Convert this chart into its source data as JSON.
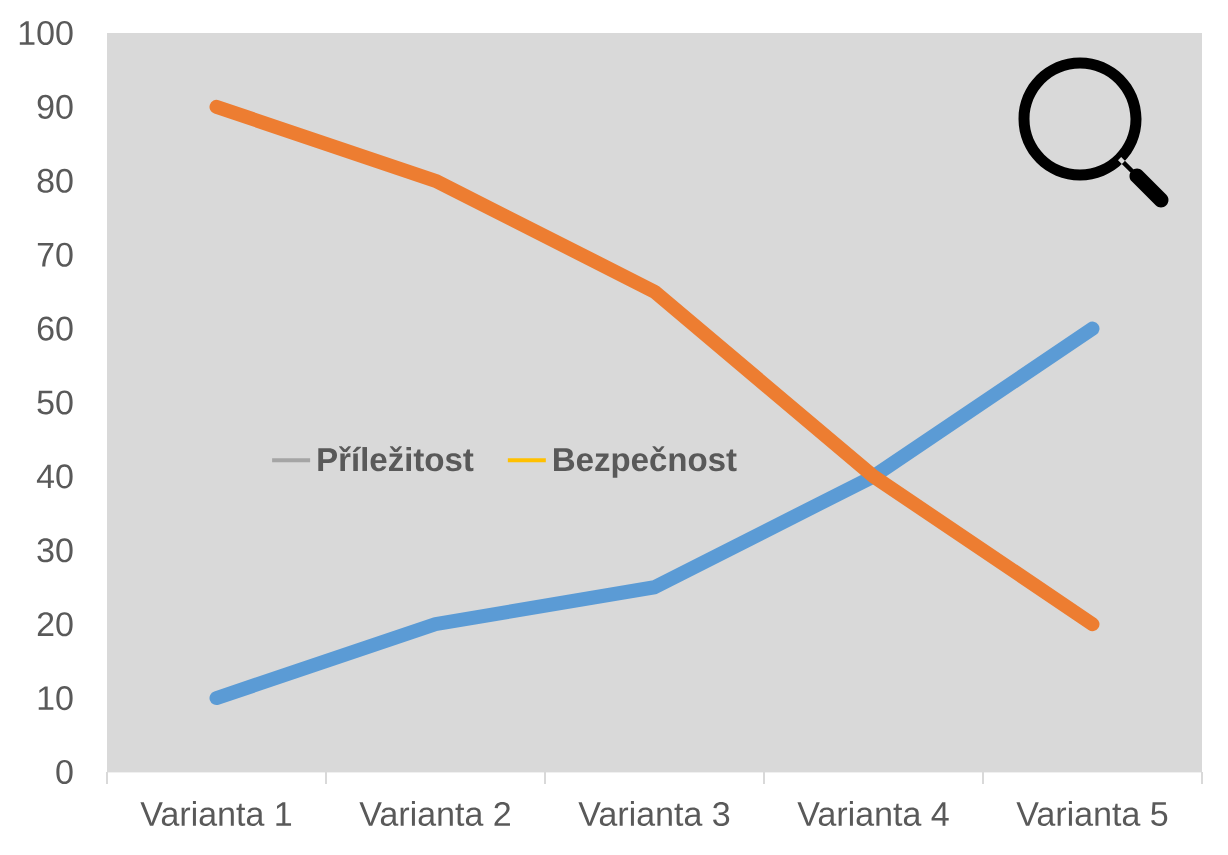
{
  "chart_data": {
    "type": "line",
    "categories": [
      "Varianta 1",
      "Varianta 2",
      "Varianta 3",
      "Varianta 4",
      "Varianta 5"
    ],
    "series": [
      {
        "color": "#5b9bd5",
        "values": [
          10,
          20,
          25,
          40,
          60
        ]
      },
      {
        "color": "#ed7d31",
        "values": [
          90,
          80,
          65,
          40,
          20
        ]
      },
      {
        "name": "Příležitost",
        "color": "#a5a5a5",
        "values": [
          null,
          null,
          null,
          null,
          null
        ]
      },
      {
        "name": "Bezpečnost",
        "color": "#ffc000",
        "values": [
          null,
          null,
          null,
          null,
          null
        ]
      }
    ],
    "ylim": [
      0,
      100
    ],
    "yticks": [
      0,
      10,
      20,
      30,
      40,
      50,
      60,
      70,
      80,
      90,
      100
    ],
    "legend": "center"
  }
}
